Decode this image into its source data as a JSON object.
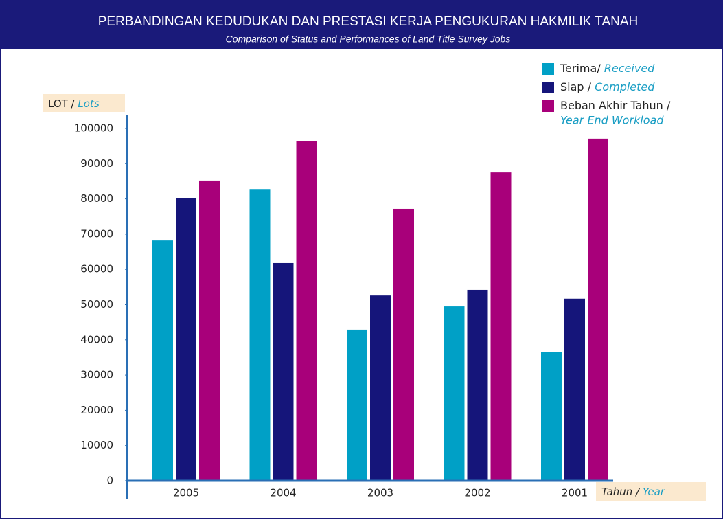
{
  "chart_data": {
    "type": "bar",
    "title": "PERBANDINGAN KEDUDUKAN DAN PRESTASI KERJA PENGUKURAN HAKMILIK TANAH",
    "subtitle": "Comparison of Status and Performances of Land Title Survey Jobs",
    "y_label": "LOT /",
    "y_label_en": "Lots",
    "x_label": "Tahun /",
    "x_label_en": "Year",
    "categories": [
      "2005",
      "2004",
      "2003",
      "2002",
      "2001"
    ],
    "series": [
      {
        "name": "Terima/",
        "name_en": "Received",
        "color": "#00a0c6",
        "values": [
          68200,
          82800,
          42900,
          49500,
          36600
        ]
      },
      {
        "name": "Siap /",
        "name_en": "Completed",
        "color": "#15157a",
        "values": [
          80300,
          61800,
          52600,
          54200,
          51700
        ]
      },
      {
        "name": "Beban Akhir Tahun /",
        "name_en": "Year End Workload",
        "color": "#a8007a",
        "values": [
          85200,
          96300,
          77200,
          87500,
          97100
        ]
      }
    ],
    "ylim": [
      0,
      100000
    ],
    "yticks": [
      0,
      10000,
      20000,
      30000,
      40000,
      50000,
      60000,
      70000,
      80000,
      90000,
      100000
    ],
    "grid": false
  }
}
